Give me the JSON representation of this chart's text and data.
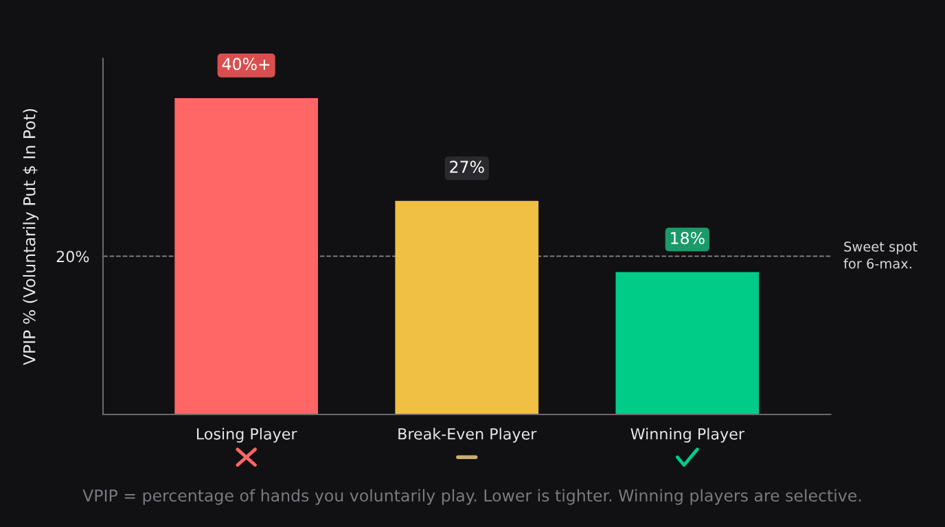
{
  "chart_data": {
    "type": "bar",
    "ylabel": "VPIP % (Voluntarily Put $ In Pot)",
    "categories": [
      "Losing Player",
      "Break-Even Player",
      "Winning Player"
    ],
    "values": [
      40,
      27,
      18
    ],
    "colors": [
      "#ff6666",
      "#f0c044",
      "#00cc88"
    ],
    "value_labels": [
      "40%+",
      "27%",
      "18%"
    ],
    "ylim": [
      0,
      45
    ],
    "yticks": [
      {
        "value": 20,
        "label": "20%"
      }
    ],
    "ref_lines": [
      {
        "axis": "y",
        "value": 20,
        "label": "Sweet spot\nfor 6-max.",
        "color": "#8a8a8e",
        "line_style": "dashed"
      }
    ],
    "grid": false,
    "legend": false,
    "annotations": [
      "VPIP = percentage of hands you voluntarily play. Lower is tighter. Winning players are selective."
    ]
  }
}
